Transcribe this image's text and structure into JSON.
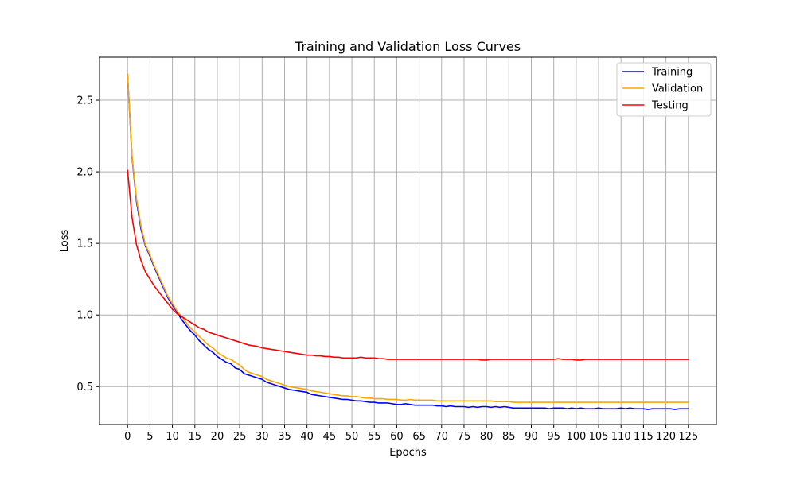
{
  "chart_data": {
    "type": "line",
    "title": "Training and Validation Loss Curves",
    "xlabel": "Epochs",
    "ylabel": "Loss",
    "xlim": [
      -6.25,
      131.25
    ],
    "ylim": [
      0.235,
      2.8
    ],
    "xticks": [
      0,
      5,
      10,
      15,
      20,
      25,
      30,
      35,
      40,
      45,
      50,
      55,
      60,
      65,
      70,
      75,
      80,
      85,
      90,
      95,
      100,
      105,
      110,
      115,
      120,
      125
    ],
    "yticks": [
      0.5,
      1.0,
      1.5,
      2.0,
      2.5
    ],
    "ytick_labels": [
      "0.5",
      "1.0",
      "1.5",
      "2.0",
      "2.5"
    ],
    "grid": true,
    "legend_position": "top-right",
    "x": [
      0,
      1,
      2,
      3,
      4,
      5,
      6,
      7,
      8,
      9,
      10,
      11,
      12,
      13,
      14,
      15,
      16,
      17,
      18,
      19,
      20,
      21,
      22,
      23,
      24,
      25,
      26,
      27,
      28,
      29,
      30,
      31,
      32,
      33,
      34,
      35,
      36,
      37,
      38,
      39,
      40,
      41,
      42,
      43,
      44,
      45,
      46,
      47,
      48,
      49,
      50,
      51,
      52,
      53,
      54,
      55,
      56,
      57,
      58,
      59,
      60,
      61,
      62,
      63,
      64,
      65,
      66,
      67,
      68,
      69,
      70,
      71,
      72,
      73,
      74,
      75,
      76,
      77,
      78,
      79,
      80,
      81,
      82,
      83,
      84,
      85,
      86,
      87,
      88,
      89,
      90,
      91,
      92,
      93,
      94,
      95,
      96,
      97,
      98,
      99,
      100,
      101,
      102,
      103,
      104,
      105,
      106,
      107,
      108,
      109,
      110,
      111,
      112,
      113,
      114,
      115,
      116,
      117,
      118,
      119,
      120,
      121,
      122,
      123,
      124,
      125
    ],
    "series": [
      {
        "name": "Training",
        "color": "#0000ff",
        "values": [
          2.68,
          2.1,
          1.79,
          1.6,
          1.48,
          1.41,
          1.33,
          1.26,
          1.19,
          1.12,
          1.07,
          1.02,
          0.97,
          0.93,
          0.89,
          0.86,
          0.82,
          0.79,
          0.76,
          0.74,
          0.71,
          0.69,
          0.67,
          0.66,
          0.63,
          0.62,
          0.59,
          0.58,
          0.57,
          0.56,
          0.55,
          0.53,
          0.52,
          0.51,
          0.5,
          0.49,
          0.48,
          0.475,
          0.47,
          0.465,
          0.46,
          0.445,
          0.44,
          0.435,
          0.43,
          0.425,
          0.42,
          0.415,
          0.41,
          0.41,
          0.405,
          0.4,
          0.4,
          0.395,
          0.39,
          0.39,
          0.385,
          0.385,
          0.385,
          0.38,
          0.375,
          0.375,
          0.38,
          0.375,
          0.37,
          0.37,
          0.37,
          0.37,
          0.37,
          0.365,
          0.365,
          0.36,
          0.365,
          0.36,
          0.36,
          0.36,
          0.355,
          0.36,
          0.355,
          0.36,
          0.36,
          0.355,
          0.36,
          0.355,
          0.36,
          0.355,
          0.35,
          0.35,
          0.35,
          0.35,
          0.35,
          0.35,
          0.35,
          0.35,
          0.345,
          0.35,
          0.35,
          0.35,
          0.345,
          0.35,
          0.345,
          0.35,
          0.345,
          0.345,
          0.345,
          0.35,
          0.345,
          0.345,
          0.345,
          0.345,
          0.35,
          0.345,
          0.35,
          0.345,
          0.345,
          0.345,
          0.34,
          0.345,
          0.345,
          0.345,
          0.345,
          0.345,
          0.34,
          0.345,
          0.345,
          0.345
        ]
      },
      {
        "name": "Validation",
        "color": "#ffa500",
        "values": [
          2.68,
          2.11,
          1.81,
          1.62,
          1.49,
          1.42,
          1.34,
          1.27,
          1.2,
          1.13,
          1.08,
          1.03,
          0.99,
          0.95,
          0.91,
          0.88,
          0.85,
          0.82,
          0.79,
          0.77,
          0.74,
          0.72,
          0.7,
          0.69,
          0.67,
          0.65,
          0.62,
          0.6,
          0.59,
          0.58,
          0.57,
          0.55,
          0.54,
          0.53,
          0.52,
          0.51,
          0.5,
          0.495,
          0.49,
          0.485,
          0.48,
          0.47,
          0.465,
          0.46,
          0.455,
          0.45,
          0.445,
          0.44,
          0.435,
          0.435,
          0.43,
          0.43,
          0.425,
          0.42,
          0.42,
          0.415,
          0.415,
          0.415,
          0.41,
          0.41,
          0.41,
          0.405,
          0.405,
          0.41,
          0.405,
          0.405,
          0.405,
          0.405,
          0.405,
          0.4,
          0.4,
          0.4,
          0.4,
          0.4,
          0.4,
          0.4,
          0.4,
          0.4,
          0.4,
          0.4,
          0.4,
          0.4,
          0.395,
          0.395,
          0.395,
          0.395,
          0.39,
          0.39,
          0.39,
          0.39,
          0.39,
          0.39,
          0.39,
          0.39,
          0.39,
          0.39,
          0.39,
          0.39,
          0.39,
          0.39,
          0.39,
          0.39,
          0.39,
          0.39,
          0.39,
          0.39,
          0.39,
          0.39,
          0.39,
          0.39,
          0.39,
          0.39,
          0.39,
          0.39,
          0.39,
          0.39,
          0.39,
          0.39,
          0.39,
          0.39,
          0.39,
          0.39,
          0.39,
          0.39,
          0.39,
          0.39
        ]
      },
      {
        "name": "Testing",
        "color": "#ff0000",
        "values": [
          2.01,
          1.68,
          1.49,
          1.38,
          1.3,
          1.25,
          1.2,
          1.16,
          1.12,
          1.08,
          1.04,
          1.01,
          0.99,
          0.97,
          0.95,
          0.93,
          0.91,
          0.9,
          0.88,
          0.87,
          0.86,
          0.85,
          0.84,
          0.83,
          0.82,
          0.81,
          0.8,
          0.79,
          0.785,
          0.78,
          0.77,
          0.765,
          0.76,
          0.755,
          0.75,
          0.745,
          0.74,
          0.735,
          0.73,
          0.725,
          0.72,
          0.72,
          0.715,
          0.715,
          0.71,
          0.71,
          0.705,
          0.705,
          0.7,
          0.7,
          0.7,
          0.7,
          0.705,
          0.7,
          0.7,
          0.7,
          0.695,
          0.695,
          0.69,
          0.69,
          0.69,
          0.69,
          0.69,
          0.69,
          0.69,
          0.69,
          0.69,
          0.69,
          0.69,
          0.69,
          0.69,
          0.69,
          0.69,
          0.69,
          0.69,
          0.69,
          0.69,
          0.69,
          0.69,
          0.685,
          0.685,
          0.69,
          0.69,
          0.69,
          0.69,
          0.69,
          0.69,
          0.69,
          0.69,
          0.69,
          0.69,
          0.69,
          0.69,
          0.69,
          0.69,
          0.69,
          0.695,
          0.69,
          0.69,
          0.69,
          0.685,
          0.685,
          0.69,
          0.69,
          0.69,
          0.69,
          0.69,
          0.69,
          0.69,
          0.69,
          0.69,
          0.69,
          0.69,
          0.69,
          0.69,
          0.69,
          0.69,
          0.69,
          0.69,
          0.69,
          0.69,
          0.69,
          0.69,
          0.69,
          0.69,
          0.69
        ]
      }
    ]
  }
}
